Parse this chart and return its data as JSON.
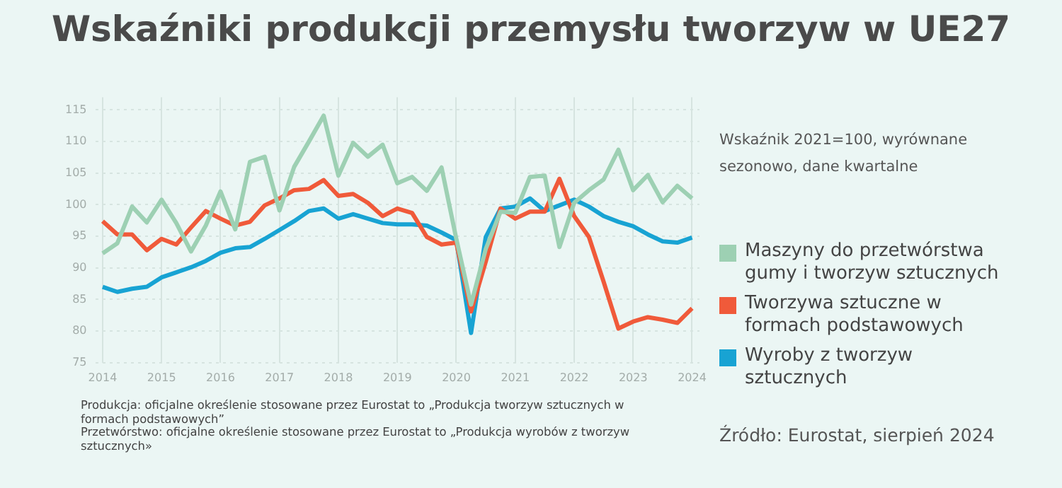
{
  "chart_data": {
    "type": "line",
    "title": "Wskaźniki produkcji przemysłu tworzyw w UE27",
    "subtitle": "Wskaźnik 2021=100, wyrównane sezonowo, dane kwartalne",
    "categories": [
      "2014",
      null,
      null,
      null,
      "2015",
      null,
      null,
      null,
      "2016",
      null,
      null,
      null,
      "2017",
      null,
      null,
      null,
      "2018",
      null,
      null,
      null,
      "2019",
      null,
      null,
      null,
      "2020",
      null,
      null,
      null,
      "2021",
      null,
      null,
      null,
      "2022",
      null,
      null,
      null,
      "2023",
      null,
      null,
      null,
      "2024"
    ],
    "series": [
      {
        "name": "Maszyny do przetwórstwa gumy i tworzyw sztucznych",
        "color": "#9dd0b3",
        "values": [
          92.3,
          93.9,
          99.7,
          97.2,
          100.8,
          97.1,
          92.6,
          96.7,
          102.1,
          96.1,
          106.8,
          107.6,
          99.1,
          106,
          110,
          114.1,
          104.6,
          109.8,
          107.6,
          109.5,
          103.4,
          104.4,
          102.2,
          105.9,
          94.6,
          84.2,
          93,
          98.9,
          98.7,
          104.4,
          104.6,
          93.3,
          100.3,
          102.3,
          104,
          108.7,
          102.3,
          104.7,
          100.4,
          103,
          101
        ]
      },
      {
        "name": "Tworzywa sztuczne w formach podstawowych",
        "color": "#f05a3a",
        "values": [
          97.4,
          95.3,
          95.3,
          92.8,
          94.6,
          93.7,
          96.4,
          99,
          97.8,
          96.7,
          97.3,
          99.9,
          101,
          102.3,
          102.5,
          103.9,
          101.4,
          101.7,
          100.3,
          98.2,
          99.4,
          98.7,
          94.9,
          93.7,
          94,
          83.1,
          91,
          99.4,
          97.8,
          98.9,
          98.9,
          104.1,
          98.2,
          94.9,
          87.8,
          80.4,
          81.5,
          82.2,
          81.8,
          81.3,
          83.6
        ]
      },
      {
        "name": "Wyroby z tworzyw sztucznych",
        "color": "#18a3d3",
        "values": [
          87,
          86.2,
          86.7,
          87,
          88.5,
          89.3,
          90.1,
          91.1,
          92.4,
          93.1,
          93.3,
          94.6,
          96,
          97.4,
          99,
          99.4,
          97.8,
          98.5,
          97.8,
          97.1,
          96.9,
          96.9,
          96.7,
          95.6,
          94.4,
          79.7,
          94.9,
          99.4,
          99.7,
          101,
          99,
          99.9,
          100.8,
          99.7,
          98.2,
          97.3,
          96.6,
          95.3,
          94.2,
          94,
          94.8
        ]
      }
    ],
    "ylim": [
      75,
      117
    ],
    "yticks": [
      75,
      80,
      85,
      90,
      95,
      100,
      105,
      110,
      115
    ],
    "grid": true,
    "legend": "right",
    "marker": "none",
    "line_style": "solid",
    "annotations": [
      "Produkcja: oficjalne określenie stosowane przez Eurostat to „Produkcja tworzyw sztucznych w formach podstawowych”",
      "Przetwórstwo: oficjalne określenie stosowane przez Eurostat to „Produkcja wyrobów z tworzyw sztucznych»",
      "Źródło: Eurostat, sierpień 2024"
    ]
  }
}
